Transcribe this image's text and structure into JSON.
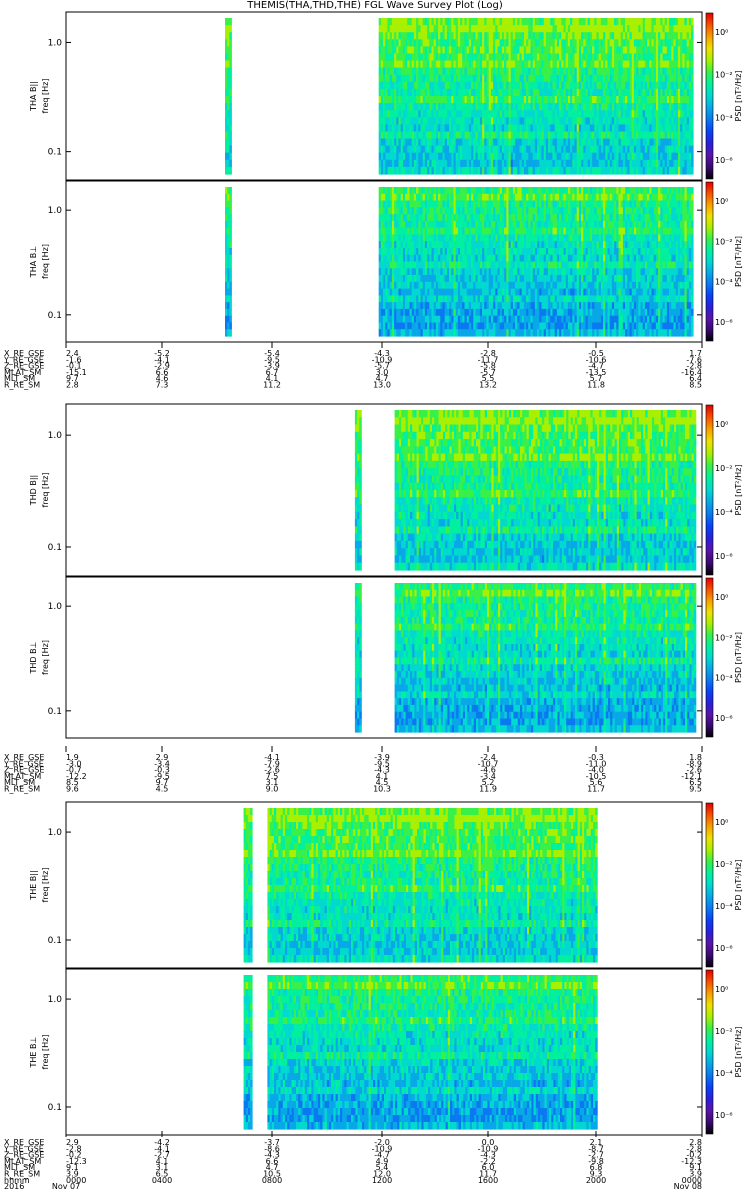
{
  "title": "THEMIS(THA,THD,THE) FGL Wave Survey Plot (Log)",
  "colors": {
    "colormap": [
      "#000000",
      "#3a0a70",
      "#5a14a8",
      "#2a20d8",
      "#0a40f8",
      "#0a78f0",
      "#08a8e8",
      "#00d8d0",
      "#00f0a0",
      "#38f048",
      "#a8f000",
      "#f0e000",
      "#f8a000",
      "#f85000",
      "#e00000"
    ],
    "background": "#ffffff",
    "frame": "#000000"
  },
  "colorbar": {
    "label": "PSD [nT²/Hz]",
    "ticks": [
      "10⁰",
      "10⁻²",
      "10⁻⁴",
      "10⁻⁶"
    ]
  },
  "chart_data": {
    "type": "heatmap",
    "title": "THEMIS(THA,THD,THE) FGL Wave Survey Plot (Log)",
    "yscale": "log",
    "ytick_labels": [
      "1.0",
      "0.1"
    ],
    "ylabel_unit": "freq [Hz]",
    "xlim_hours": [
      0,
      24
    ],
    "panels": [
      {
        "id": "tha-bpar",
        "ylabel": "THA B||",
        "coverage_hours": [
          [
            6.0,
            6.2
          ],
          [
            11.8,
            23.6
          ]
        ]
      },
      {
        "id": "tha-bperp",
        "ylabel": "THA B⊥",
        "coverage_hours": [
          [
            6.0,
            6.2
          ],
          [
            11.8,
            23.6
          ]
        ]
      },
      {
        "id": "thd-bpar",
        "ylabel": "THD B||",
        "coverage_hours": [
          [
            10.9,
            11.1
          ],
          [
            12.4,
            23.7
          ]
        ]
      },
      {
        "id": "thd-bperp",
        "ylabel": "THD B⊥",
        "coverage_hours": [
          [
            10.9,
            11.1
          ],
          [
            12.4,
            23.7
          ]
        ]
      },
      {
        "id": "the-bpar",
        "ylabel": "THE B||",
        "coverage_hours": [
          [
            6.7,
            7.0
          ],
          [
            7.6,
            20.0
          ]
        ]
      },
      {
        "id": "the-bperp",
        "ylabel": "THE B⊥",
        "coverage_hours": [
          [
            6.7,
            7.0
          ],
          [
            7.6,
            20.0
          ]
        ]
      }
    ],
    "ephemeris_blocks": [
      {
        "rows": [
          {
            "name": "X_RE_GSE",
            "values": [
              "2.4",
              "-5.2",
              "-5.4",
              "-4.3",
              "-2.8",
              "-0.5",
              "1.7"
            ]
          },
          {
            "name": "Y_RE_GSE",
            "values": [
              "-1.6",
              "-4.1",
              "-9.5",
              "-10.9",
              "-11.7",
              "-10.6",
              "-7.6"
            ]
          },
          {
            "name": "Z_RE_GSE",
            "values": [
              "-0.1",
              "-2.9",
              "-3.9",
              "-5.7",
              "-5.8",
              "-4.7",
              "-2.8"
            ]
          },
          {
            "name": "MLAT_SM",
            "values": [
              "-15.1",
              "6.6",
              "6.7",
              "3.0",
              "-5.7",
              "-13.5",
              "-16.4"
            ]
          },
          {
            "name": "MLT_SM",
            "values": [
              "9.7",
              "4.6",
              "4.1",
              "4.7",
              "5.5",
              "5.7",
              "6.4"
            ]
          },
          {
            "name": "R_RE_SM",
            "values": [
              "2.8",
              "7.3",
              "11.2",
              "13.0",
              "13.2",
              "11.8",
              "8.5"
            ]
          }
        ]
      },
      {
        "rows": [
          {
            "name": "X_RE_GSE",
            "values": [
              "1.9",
              "2.9",
              "-4.1",
              "-3.9",
              "-2.4",
              "-0.3",
              "1.8"
            ]
          },
          {
            "name": "Y_RE_GSE",
            "values": [
              "-3.0",
              "-3.4",
              "-7.9",
              "-9.5",
              "-10.7",
              "-11.0",
              "-8.9"
            ]
          },
          {
            "name": "Z_RE_GSE",
            "values": [
              "-0.7",
              "-0.3",
              "-2.6",
              "-4.3",
              "-4.6",
              "-4.0",
              "-2.6"
            ]
          },
          {
            "name": "MLAT_SM",
            "values": [
              "-12.2",
              "-9.5",
              "7.5",
              "4.1",
              "-3.4",
              "-10.5",
              "-12.1"
            ]
          },
          {
            "name": "MLT_SM",
            "values": [
              "8.5",
              "9.7",
              "3.1",
              "4.5",
              "5.2",
              "5.6",
              "6.5"
            ]
          },
          {
            "name": "R_RE_SM",
            "values": [
              "9.6",
              "4.5",
              "9.0",
              "10.3",
              "11.9",
              "11.7",
              "9.5"
            ]
          }
        ]
      },
      {
        "rows": [
          {
            "name": "X_RE_GSE",
            "values": [
              "2.9",
              "-4.2",
              "-3.7",
              "-2.0",
              "0.0",
              "2.1",
              "2.8"
            ]
          },
          {
            "name": "Y_RE_GSE",
            "values": [
              "-2.8",
              "-4.1",
              "-8.6",
              "-10.9",
              "-10.9",
              "-8.7",
              "-2.8"
            ]
          },
          {
            "name": "Z_RE_GSE",
            "values": [
              "-0.2",
              "-2.7",
              "-4.3",
              "-4.7",
              "-4.3",
              "-2.7",
              "-0.2"
            ]
          },
          {
            "name": "MLAT_SM",
            "values": [
              "-12.3",
              "4.1",
              "6.6",
              "4.9",
              "-2.2",
              "-9.8",
              "-12.3"
            ]
          },
          {
            "name": "MLT_SM",
            "values": [
              "9.1",
              "3.1",
              "4.7",
              "5.4",
              "6.0",
              "6.8",
              "9.1"
            ]
          },
          {
            "name": "R_RE_SM",
            "values": [
              "3.9",
              "6.5",
              "10.5",
              "12.0",
              "11.7",
              "9.3",
              "3.9"
            ]
          }
        ],
        "time_row": {
          "name": "hhmm",
          "values": [
            "0000",
            "0400",
            "0800",
            "1200",
            "1600",
            "2000",
            "0000"
          ]
        },
        "date_row": {
          "year": "2016",
          "values": [
            "Nov 07",
            "Nov 08"
          ]
        }
      }
    ]
  }
}
